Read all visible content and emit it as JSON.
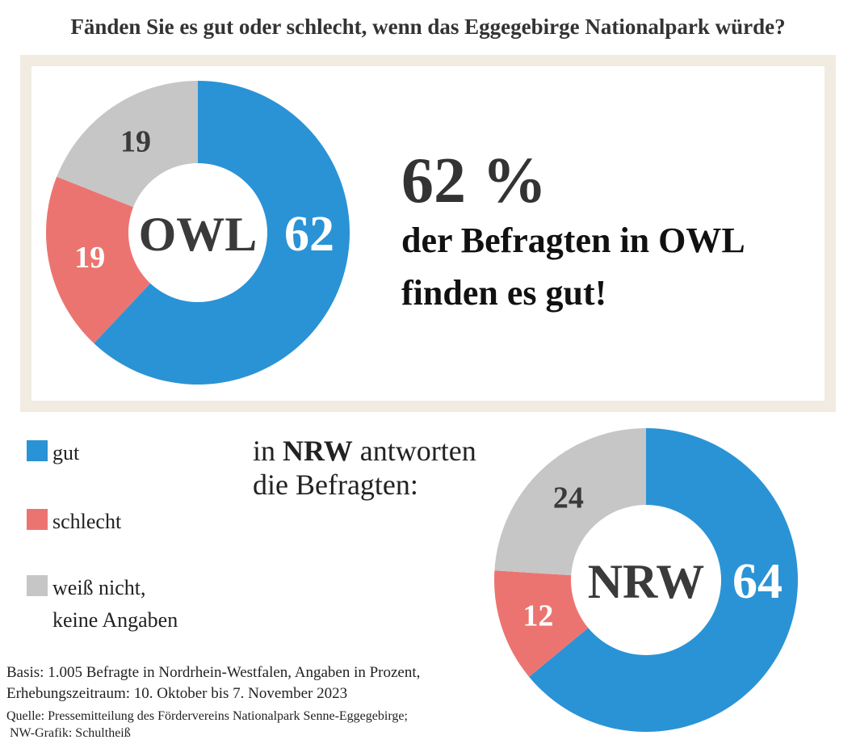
{
  "title": "Fänden Sie es gut oder schlecht, wenn das Eggegebirge Nationalpark würde?",
  "headline": {
    "big": "62 %",
    "lines": [
      "der Befragten in OWL",
      "finden es gut!"
    ]
  },
  "nrw_intro": {
    "line1": [
      "in",
      "NRW",
      "antworten"
    ],
    "line2": "die Befragten:"
  },
  "notes": [
    "Basis: 1.005 Befragte in Nordrhein-Westfalen, Angaben in Prozent,",
    "Erhebungszeitraum: 10. Oktober bis 7. November 2023"
  ],
  "source": [
    "Quelle: Pressemitteilung des Fördervereins Nationalpark Senne-Eggegebirge;",
    "NW-Grafik: Schultheiß"
  ],
  "chart_data": {
    "type": "donut",
    "categories": [
      "gut",
      "schlecht",
      "weiß nicht,\nkeine Angaben"
    ],
    "colors": [
      "#2a93d5",
      "#ec7470",
      "#c6c6c6"
    ],
    "series": [
      {
        "name": "OWL",
        "values": [
          62,
          19,
          19
        ]
      },
      {
        "name": "NRW",
        "values": [
          64,
          12,
          24
        ]
      }
    ]
  }
}
